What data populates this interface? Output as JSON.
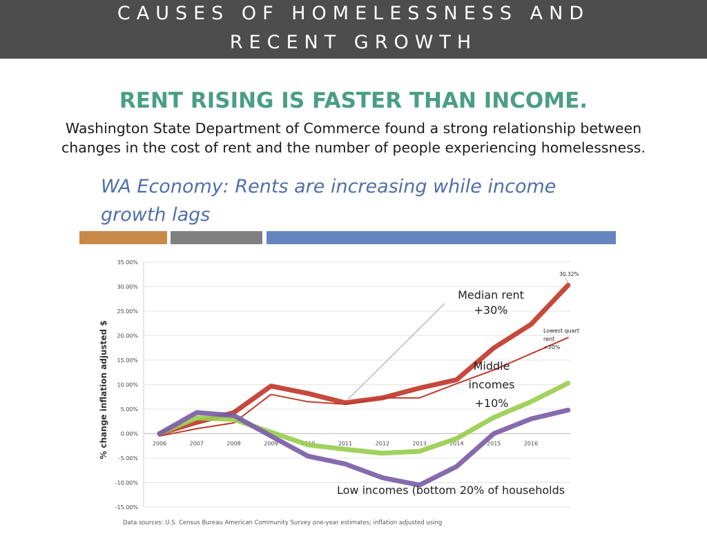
{
  "header": {
    "line1": "CAUSES OF HOMELESSNESS AND",
    "line2": "RECENT GROWTH"
  },
  "subtitle": "RENT RISING IS FASTER THAN INCOME.",
  "body": {
    "line1": "Washington State Department of Commerce found a strong relationship between",
    "line2": "changes in the cost of rent and the number of people experiencing homelessness."
  },
  "slide": {
    "title_line1": "WA Economy: Rents are increasing while income",
    "title_line2": "growth lags",
    "band_colors": [
      "#c8894a",
      "#808080",
      "#6685bf"
    ]
  },
  "chart_data": {
    "type": "line",
    "ylabel": "% change inflation adjusted $",
    "ylim": [
      -15,
      35
    ],
    "ytick_step": 5,
    "ytick_labels": [
      "35.00%",
      "30.00%",
      "25.00%",
      "20.00%",
      "15.00%",
      "10.00%",
      "5.00%",
      "0.00%",
      "-5.00%",
      "-10.00%",
      "-15.00%"
    ],
    "x": [
      "2006",
      "2007",
      "2008",
      "2009",
      "2010",
      "2011",
      "2012",
      "2013",
      "2014",
      "2015",
      "2016",
      "2017"
    ],
    "x_tick_labels": [
      "2006",
      "2007",
      "2008",
      "2009",
      "2010",
      "2011",
      "2012",
      "2013",
      "2014",
      "2015",
      "2016"
    ],
    "grid": true,
    "series": [
      {
        "name": "Median rent +30%",
        "color": "#c0392b",
        "width": 7,
        "values": [
          0,
          2.3,
          4.3,
          9.7,
          8.2,
          6.3,
          7.3,
          9.3,
          11.0,
          17.5,
          22.3,
          30.3
        ]
      },
      {
        "name": "Lowest quartile rent +20%",
        "color": "#c0392b",
        "width": 2,
        "values": [
          -0.5,
          1.0,
          2.2,
          8.0,
          6.5,
          6.0,
          7.3,
          7.3,
          10.2,
          13.0,
          16.3,
          19.6
        ]
      },
      {
        "name": "Middle incomes +10%",
        "color": "#9acd4f",
        "width": 7,
        "values": [
          0,
          3.2,
          2.9,
          0.3,
          -2.3,
          -3.2,
          -4.0,
          -3.6,
          -1.0,
          3.3,
          6.5,
          10.3
        ]
      },
      {
        "name": "Low incomes (bottom 20% of households)",
        "color": "#7b5ea7",
        "width": 7,
        "values": [
          0,
          4.3,
          3.7,
          -0.5,
          -4.6,
          -6.2,
          -9.0,
          -10.5,
          -6.7,
          0,
          3.0,
          4.8
        ]
      }
    ],
    "annotations": {
      "median_rent": "Median rent\n+30%",
      "peak_value": "30.32%",
      "lowest_quartile": "Lowest quart\nrent\n+20%",
      "middle_incomes": "Middle\nincomes\n+10%",
      "low_incomes": "Low incomes (bottom 20% of households"
    },
    "source": "Data sources: U.S. Census Bureau American Community Survey one-year estimates; inflation adjusted using"
  }
}
